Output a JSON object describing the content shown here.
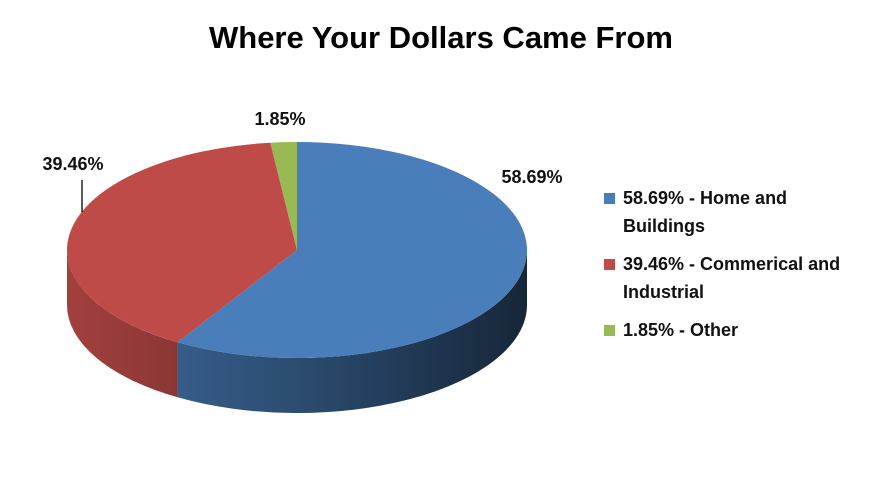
{
  "chart_data": {
    "type": "pie",
    "title": "Where Your Dollars Came From",
    "categories": [
      "58.69% - Home and Buildings",
      "39.46% - Commerical and Industrial",
      "1.85% - Other"
    ],
    "values": [
      58.69,
      39.46,
      1.85
    ],
    "value_labels": [
      "58.69%",
      "39.46%",
      "1.85%"
    ],
    "colors": [
      "#4a7ebb",
      "#be4b48",
      "#98b954"
    ],
    "legend": "right"
  }
}
